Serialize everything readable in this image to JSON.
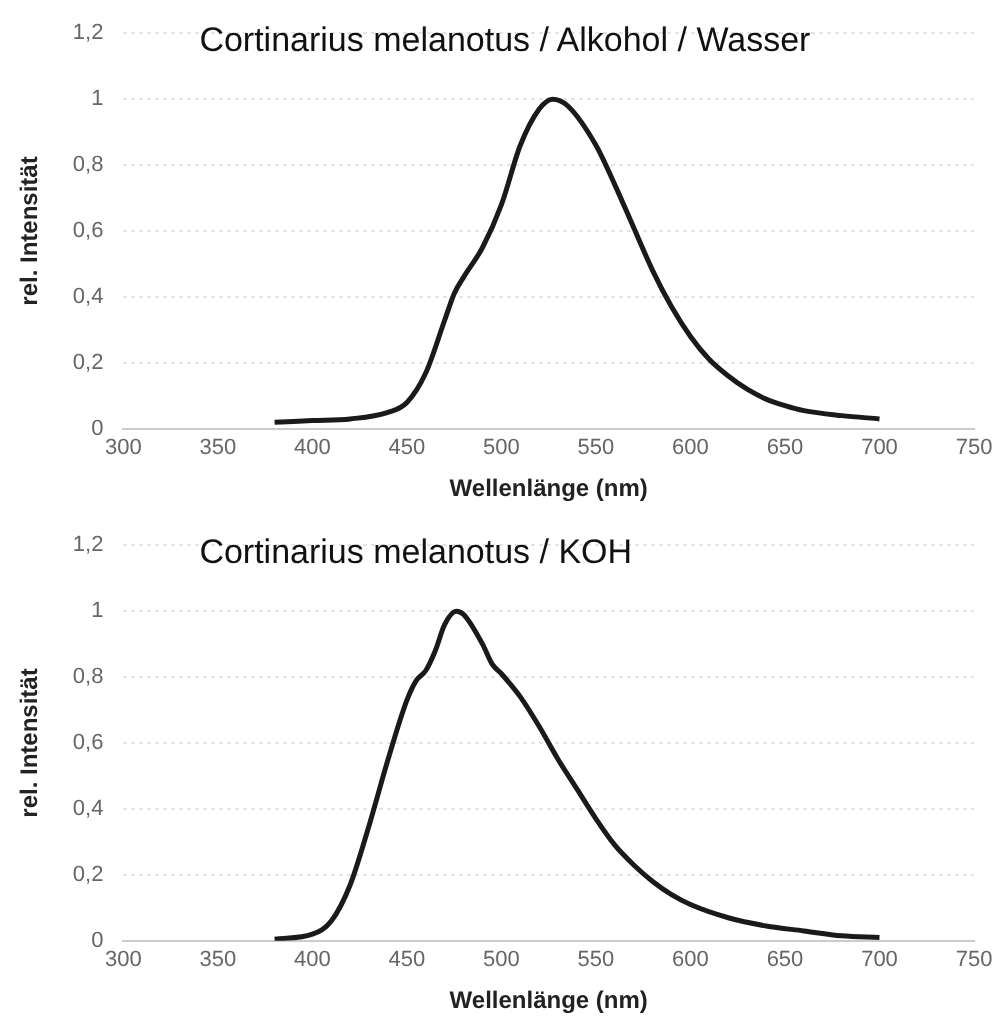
{
  "chart_data": [
    {
      "type": "line",
      "title": "Cortinarius melanotus / Alkohol / Wasser",
      "xlabel": "Wellenlänge (nm)",
      "ylabel": "rel. Intensität",
      "xlim": [
        300,
        750
      ],
      "xticks": [
        300,
        350,
        400,
        450,
        500,
        550,
        600,
        650,
        700,
        750
      ],
      "ylim": [
        0,
        1.2
      ],
      "yticks": [
        {
          "value": 0,
          "label": "0"
        },
        {
          "value": 0.2,
          "label": "0,2"
        },
        {
          "value": 0.4,
          "label": "0,4"
        },
        {
          "value": 0.6,
          "label": "0,6"
        },
        {
          "value": 0.8,
          "label": "0,8"
        },
        {
          "value": 1,
          "label": "1"
        },
        {
          "value": 1.2,
          "label": "1,2"
        }
      ],
      "grid": "y",
      "legend": false,
      "marker": "none",
      "line_style": "solid",
      "series": [
        {
          "color": "#1a1a1a",
          "x": [
            380,
            400,
            420,
            440,
            450,
            460,
            470,
            475,
            480,
            490,
            500,
            510,
            520,
            527,
            535,
            550,
            560,
            570,
            580,
            590,
            600,
            610,
            620,
            630,
            640,
            650,
            660,
            680,
            700
          ],
          "values": [
            0.02,
            0.025,
            0.03,
            0.05,
            0.08,
            0.17,
            0.33,
            0.41,
            0.46,
            0.55,
            0.68,
            0.86,
            0.97,
            1.0,
            0.98,
            0.86,
            0.74,
            0.61,
            0.48,
            0.37,
            0.28,
            0.21,
            0.16,
            0.12,
            0.09,
            0.07,
            0.055,
            0.04,
            0.03
          ]
        }
      ]
    },
    {
      "type": "line",
      "title": "Cortinarius melanotus / KOH",
      "xlabel": "Wellenlänge (nm)",
      "ylabel": "rel. Intensität",
      "xlim": [
        300,
        750
      ],
      "xticks": [
        300,
        350,
        400,
        450,
        500,
        550,
        600,
        650,
        700,
        750
      ],
      "ylim": [
        0,
        1.2
      ],
      "yticks": [
        {
          "value": 0,
          "label": "0"
        },
        {
          "value": 0.2,
          "label": "0,2"
        },
        {
          "value": 0.4,
          "label": "0,4"
        },
        {
          "value": 0.6,
          "label": "0,6"
        },
        {
          "value": 0.8,
          "label": "0,8"
        },
        {
          "value": 1,
          "label": "1"
        },
        {
          "value": 1.2,
          "label": "1,2"
        }
      ],
      "grid": "y",
      "legend": false,
      "marker": "none",
      "line_style": "solid",
      "series": [
        {
          "color": "#1a1a1a",
          "x": [
            380,
            400,
            410,
            420,
            430,
            440,
            450,
            455,
            460,
            465,
            470,
            476,
            480,
            490,
            495,
            500,
            510,
            520,
            530,
            540,
            550,
            560,
            570,
            580,
            590,
            600,
            620,
            640,
            660,
            680,
            700
          ],
          "values": [
            0.005,
            0.02,
            0.06,
            0.17,
            0.35,
            0.55,
            0.73,
            0.79,
            0.82,
            0.88,
            0.96,
            1.0,
            0.99,
            0.9,
            0.84,
            0.81,
            0.74,
            0.65,
            0.55,
            0.46,
            0.37,
            0.29,
            0.23,
            0.18,
            0.14,
            0.11,
            0.07,
            0.045,
            0.03,
            0.015,
            0.01
          ]
        }
      ]
    }
  ]
}
